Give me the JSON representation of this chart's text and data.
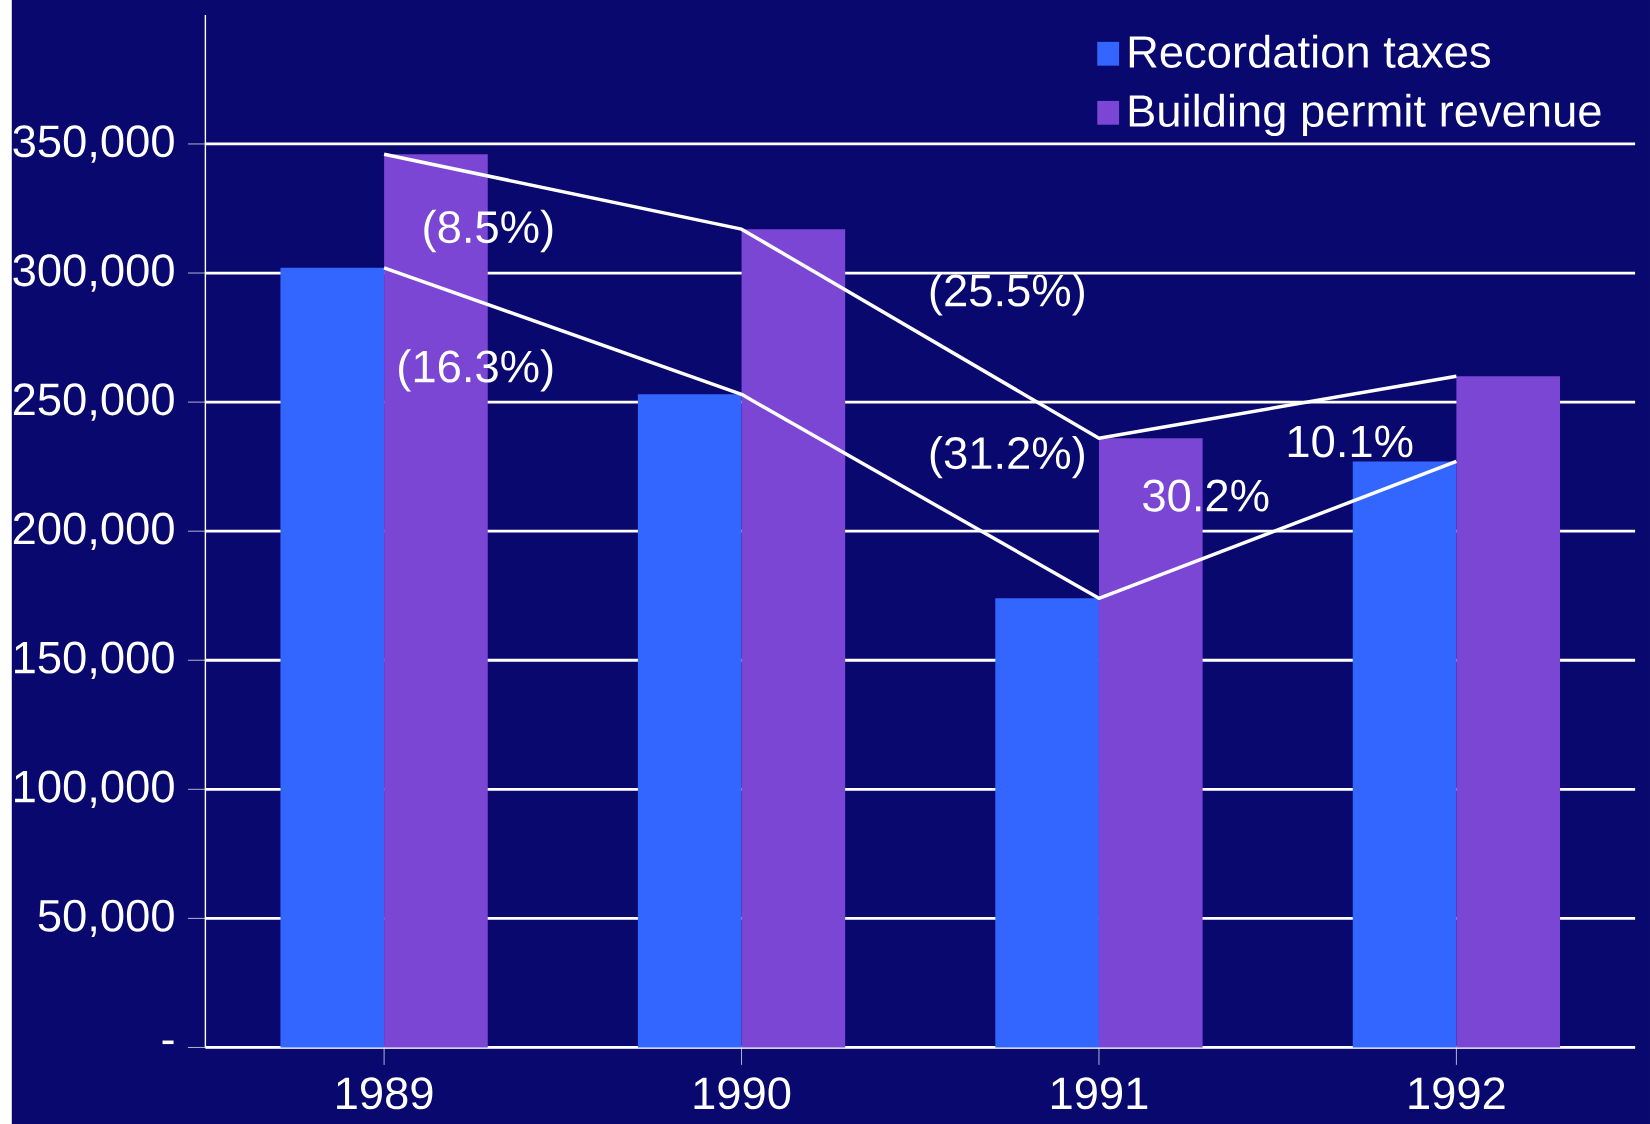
{
  "chart_data": {
    "type": "bar",
    "categories": [
      "1989",
      "1990",
      "1991",
      "1992"
    ],
    "series": [
      {
        "name": "Recordation taxes",
        "color": "#3366ff",
        "values": [
          302000,
          253000,
          174000,
          227000
        ]
      },
      {
        "name": "Building permit revenue",
        "color": "#7b46d4",
        "values": [
          346000,
          317000,
          236000,
          260000
        ]
      },
      {
        "type": "line",
        "color": "#ffffff",
        "values": [
          302000,
          253000,
          174000,
          227000
        ]
      },
      {
        "type": "line",
        "color": "#ffffff",
        "values": [
          346000,
          317000,
          236000,
          260000
        ]
      }
    ],
    "annotations": [
      "(16.3%)",
      "(31.2%)",
      "30.2%",
      "(8.5%)",
      "(25.5%)",
      "10.1%"
    ],
    "ylim": [
      0,
      400000
    ],
    "yticks": [
      {
        "value": 0,
        "label": "-"
      },
      {
        "value": 50000,
        "label": "50,000"
      },
      {
        "value": 100000,
        "label": "100,000"
      },
      {
        "value": 150000,
        "label": "150,000"
      },
      {
        "value": 200000,
        "label": "200,000"
      },
      {
        "value": 250000,
        "label": "250,000"
      },
      {
        "value": 300000,
        "label": "300,000"
      },
      {
        "value": 350000,
        "label": "350,000"
      }
    ],
    "grid": "y",
    "legend": "top right"
  }
}
